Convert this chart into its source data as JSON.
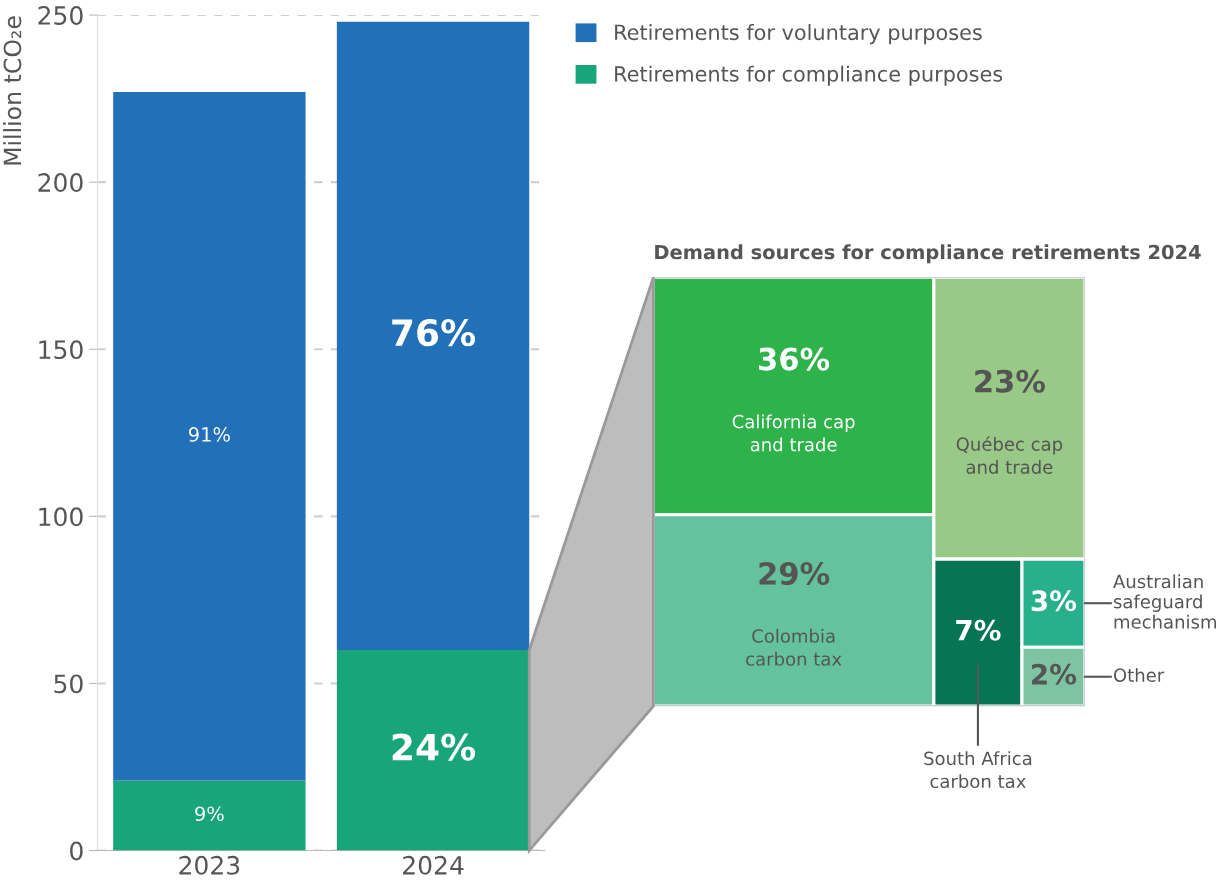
{
  "chart_data": [
    {
      "type": "bar",
      "stacked": true,
      "ylabel": "Million tCO₂e",
      "categories": [
        "2023",
        "2024"
      ],
      "series": [
        {
          "name": "Retirements for compliance purposes",
          "color": "#19a57a",
          "values": [
            21,
            60
          ]
        },
        {
          "name": "Retirements for voluntary purposes",
          "color": "#2170b8",
          "values": [
            206,
            188
          ]
        }
      ],
      "annotations": [
        "9%",
        "24%",
        "91%",
        "76%"
      ],
      "ylim": [
        0,
        250
      ],
      "yticks": [
        0,
        50,
        100,
        150,
        200,
        250
      ],
      "grid": "y",
      "legend": "top right"
    },
    {
      "type": "other",
      "title": "Demand sources for compliance retirements 2024",
      "categories": [
        "California cap\nand trade",
        "Colombia\ncarbon tax",
        "Québec cap\nand trade",
        "South Africa\ncarbon tax",
        "Australian\nsafeguard\nmechanism",
        "Other"
      ],
      "values": [
        36,
        29,
        23,
        7,
        3,
        2
      ],
      "value_labels": [
        "36%",
        "29%",
        "23%",
        "7%",
        "3%",
        "2%"
      ],
      "colors": [
        "#2db34a",
        "#64c29e",
        "#98c986",
        "#077553",
        "#27b08b",
        "#7fc4a2"
      ]
    }
  ]
}
